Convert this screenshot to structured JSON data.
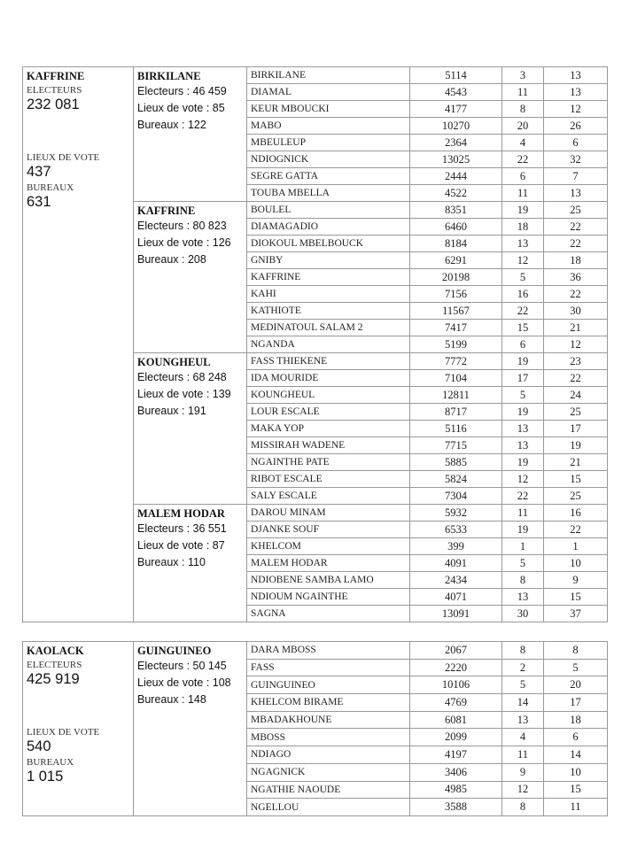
{
  "regions": [
    {
      "name": "KAFFRINE",
      "electeurs_label": "ELECTEURS",
      "electeurs": "232 081",
      "lieux_label": "LIEUX DE VOTE",
      "lieux": "437",
      "bureaux_label": "BUREAUX",
      "bureaux": "631",
      "departements": [
        {
          "name": "BIRKILANE",
          "electeurs": "Electeurs : 46 459",
          "lieux": "Lieux de vote : 85",
          "bureaux": "Bureaux : 122",
          "communes": [
            [
              "BIRKILANE",
              "5114",
              "3",
              "13"
            ],
            [
              "DIAMAL",
              "4543",
              "11",
              "13"
            ],
            [
              "KEUR MBOUCKI",
              "4177",
              "8",
              "12"
            ],
            [
              "MABO",
              "10270",
              "20",
              "26"
            ],
            [
              "MBEULEUP",
              "2364",
              "4",
              "6"
            ],
            [
              "NDIOGNICK",
              "13025",
              "22",
              "32"
            ],
            [
              "SEGRE GATTA",
              "2444",
              "6",
              "7"
            ],
            [
              "TOUBA MBELLA",
              "4522",
              "11",
              "13"
            ]
          ]
        },
        {
          "name": "KAFFRINE",
          "electeurs": "Electeurs : 80 823",
          "lieux": "Lieux de vote : 126",
          "bureaux": "Bureaux : 208",
          "communes": [
            [
              "BOULEL",
              "8351",
              "19",
              "25"
            ],
            [
              "DIAMAGADIO",
              "6460",
              "18",
              "22"
            ],
            [
              "DIOKOUL MBELBOUCK",
              "8184",
              "13",
              "22"
            ],
            [
              "GNIBY",
              "6291",
              "12",
              "18"
            ],
            [
              "KAFFRINE",
              "20198",
              "5",
              "36"
            ],
            [
              "KAHI",
              "7156",
              "16",
              "22"
            ],
            [
              "KATHIOTE",
              "11567",
              "22",
              "30"
            ],
            [
              "MEDINATOUL SALAM 2",
              "7417",
              "15",
              "21"
            ],
            [
              "NGANDA",
              "5199",
              "6",
              "12"
            ]
          ]
        },
        {
          "name": "KOUNGHEUL",
          "electeurs": "Electeurs : 68 248",
          "lieux": "Lieux de vote : 139",
          "bureaux": "Bureaux : 191",
          "communes": [
            [
              "FASS THIEKENE",
              "7772",
              "19",
              "23"
            ],
            [
              "IDA MOURIDE",
              "7104",
              "17",
              "22"
            ],
            [
              "KOUNGHEUL",
              "12811",
              "5",
              "24"
            ],
            [
              "LOUR ESCALE",
              "8717",
              "19",
              "25"
            ],
            [
              "MAKA YOP",
              "5116",
              "13",
              "17"
            ],
            [
              "MISSIRAH WADENE",
              "7715",
              "13",
              "19"
            ],
            [
              "NGAINTHE PATE",
              "5885",
              "19",
              "21"
            ],
            [
              "RIBOT ESCALE",
              "5824",
              "12",
              "15"
            ],
            [
              "SALY ESCALE",
              "7304",
              "22",
              "25"
            ]
          ]
        },
        {
          "name": "MALEM HODAR",
          "electeurs": "Electeurs : 36 551",
          "lieux": "Lieux de vote : 87",
          "bureaux": "Bureaux : 110",
          "communes": [
            [
              "DAROU MINAM",
              "5932",
              "11",
              "16"
            ],
            [
              "DJANKE SOUF",
              "6533",
              "19",
              "22"
            ],
            [
              "KHELCOM",
              "399",
              "1",
              "1"
            ],
            [
              "MALEM HODAR",
              "4091",
              "5",
              "10"
            ],
            [
              "NDIOBENE SAMBA LAMO",
              "2434",
              "8",
              "9"
            ],
            [
              "NDIOUM NGAINTHE",
              "4071",
              "13",
              "15"
            ],
            [
              "SAGNA",
              "13091",
              "30",
              "37"
            ]
          ]
        }
      ]
    },
    {
      "name": "KAOLACK",
      "electeurs_label": "ELECTEURS",
      "electeurs": "425 919",
      "lieux_label": "LIEUX DE VOTE",
      "lieux": "540",
      "bureaux_label": "BUREAUX",
      "bureaux": "1 015",
      "departements": [
        {
          "name": "GUINGUINEO",
          "electeurs": "Electeurs : 50 145",
          "lieux": "Lieux de vote : 108",
          "bureaux": "Bureaux : 148",
          "communes": [
            [
              "DARA MBOSS",
              "2067",
              "8",
              "8"
            ],
            [
              "FASS",
              "2220",
              "2",
              "5"
            ],
            [
              "GUINGUINEO",
              "10106",
              "5",
              "20"
            ],
            [
              "KHELCOM BIRAME",
              "4769",
              "14",
              "17"
            ],
            [
              "MBADAKHOUNE",
              "6081",
              "13",
              "18"
            ],
            [
              "MBOSS",
              "2099",
              "4",
              "6"
            ],
            [
              "NDIAGO",
              "4197",
              "11",
              "14"
            ],
            [
              "NGAGNICK",
              "3406",
              "9",
              "10"
            ],
            [
              "NGATHIE NAOUDE",
              "4985",
              "12",
              "15"
            ],
            [
              "NGELLOU",
              "3588",
              "8",
              "11"
            ]
          ]
        }
      ]
    }
  ]
}
